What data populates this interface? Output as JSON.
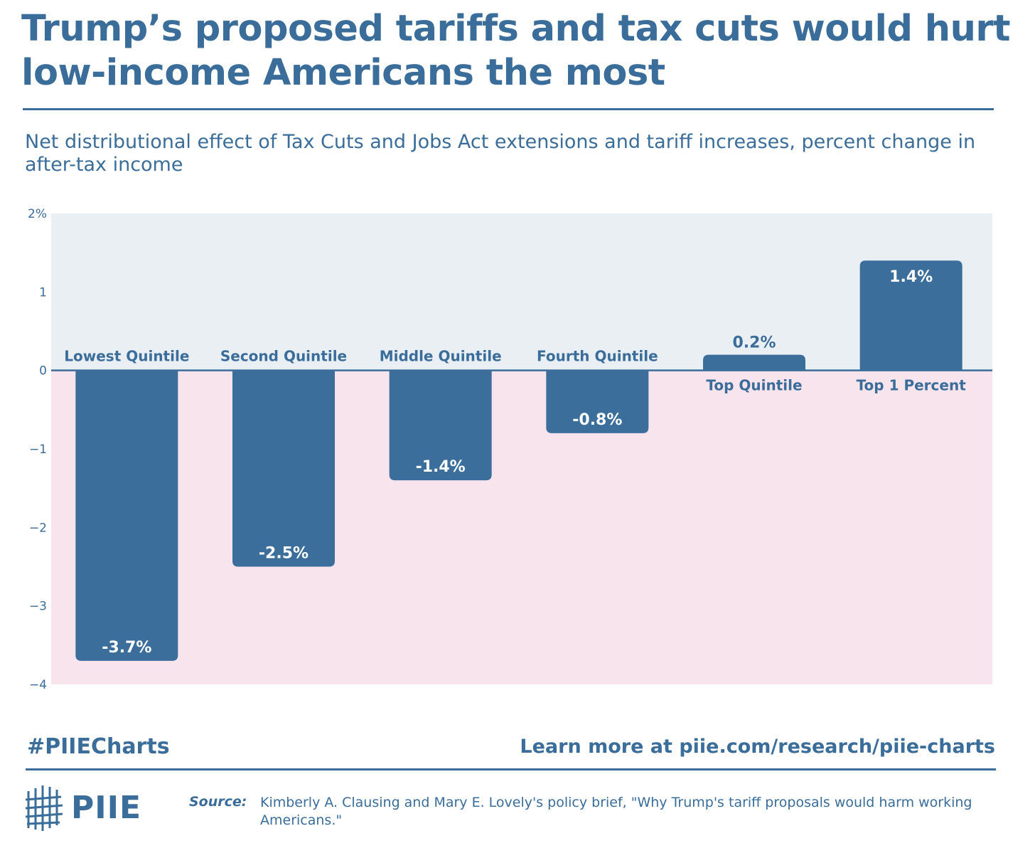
{
  "header": {
    "title": "Trump’s proposed tariffs and tax cuts would hurt low-income Americans the most",
    "subtitle": "Net distributional effect of Tax Cuts and Jobs Act extensions and tariff increases, percent change in after-tax income"
  },
  "colors": {
    "bar": "#3b6e9b",
    "positive_bg": "#eaeff4",
    "negative_bg": "#f8e4ec",
    "text": "#3a6d9a"
  },
  "chart_data": {
    "type": "bar",
    "categories": [
      "Lowest Quintile",
      "Second Quintile",
      "Middle Quintile",
      "Fourth Quintile",
      "Top Quintile",
      "Top 1 Percent"
    ],
    "values": [
      -3.7,
      -2.5,
      -1.4,
      -0.8,
      0.2,
      1.4
    ],
    "value_labels": [
      "-3.7%",
      "-2.5%",
      "-1.4%",
      "-0.8%",
      "0.2%",
      "1.4%"
    ],
    "yticks": [
      "2%",
      "1",
      "0",
      "−1",
      "−2",
      "−3",
      "−4"
    ],
    "ytick_values": [
      2,
      1,
      0,
      -1,
      -2,
      -3,
      -4
    ],
    "ylim": [
      -4,
      2
    ],
    "xlabel": "",
    "ylabel": ""
  },
  "footer": {
    "hashtag": "#PIIECharts",
    "link": "Learn more at piie.com/research/piie-charts",
    "logo_text": "PIIE",
    "source_label": "Source:",
    "source_text": "Kimberly A. Clausing and Mary E. Lovely's policy brief, \"Why Trump's tariff proposals would harm working Americans.\""
  }
}
